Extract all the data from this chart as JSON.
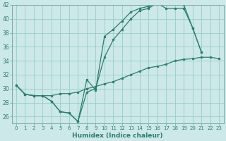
{
  "xlabel": "Humidex (Indice chaleur)",
  "bg_color": "#cce8e8",
  "grid_color": "#99cccc",
  "line_color": "#2e7d6e",
  "ylim": [
    25,
    42
  ],
  "xlim": [
    -0.5,
    23.5
  ],
  "yticks": [
    26,
    28,
    30,
    32,
    34,
    36,
    38,
    40,
    42
  ],
  "xticks": [
    0,
    1,
    2,
    3,
    4,
    5,
    6,
    7,
    8,
    9,
    10,
    11,
    12,
    13,
    14,
    15,
    16,
    17,
    18,
    19,
    20,
    21,
    22,
    23
  ],
  "line1_x": [
    0,
    1,
    2,
    3,
    4,
    5,
    6,
    7,
    8,
    9,
    10,
    11,
    12,
    13,
    14,
    15,
    16,
    17,
    18,
    19,
    20,
    21
  ],
  "line1_y": [
    30.5,
    29.2,
    29.0,
    29.0,
    28.2,
    26.7,
    26.5,
    25.3,
    31.3,
    29.8,
    37.5,
    38.5,
    39.7,
    41.0,
    41.5,
    41.8,
    42.2,
    41.5,
    41.5,
    41.5,
    38.7,
    35.2
  ],
  "line2_x": [
    0,
    1,
    2,
    3,
    4,
    5,
    6,
    7,
    8,
    9,
    10,
    11,
    12,
    13,
    14,
    15,
    16,
    17,
    18,
    19,
    20,
    21
  ],
  "line2_y": [
    30.5,
    29.2,
    29.0,
    29.0,
    28.2,
    26.7,
    26.5,
    25.3,
    29.5,
    30.0,
    34.5,
    37.0,
    38.5,
    40.0,
    41.2,
    41.5,
    42.3,
    42.7,
    42.3,
    42.0,
    38.7,
    35.2
  ],
  "line3_x": [
    0,
    1,
    2,
    3,
    4,
    5,
    6,
    7,
    8,
    9,
    10,
    11,
    12,
    13,
    14,
    15,
    16,
    17,
    18,
    19,
    20,
    21,
    22,
    23
  ],
  "line3_y": [
    30.5,
    29.2,
    29.0,
    29.0,
    29.0,
    29.3,
    29.3,
    29.5,
    30.0,
    30.3,
    30.7,
    31.0,
    31.5,
    32.0,
    32.5,
    33.0,
    33.2,
    33.5,
    34.0,
    34.2,
    34.3,
    34.5,
    34.5,
    34.3
  ]
}
